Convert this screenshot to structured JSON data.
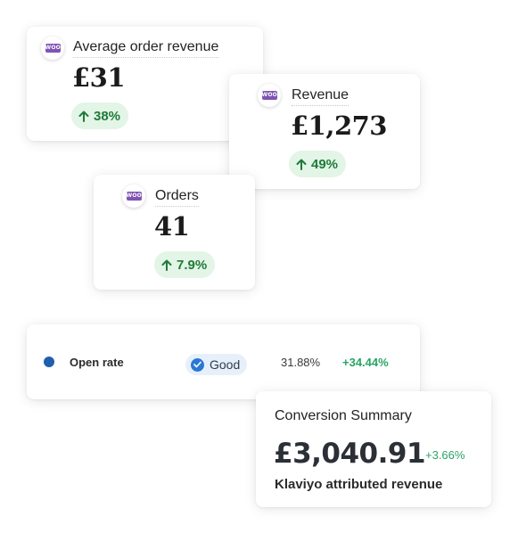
{
  "metrics": [
    {
      "label": "Average order revenue",
      "value": "£31",
      "change": "38%",
      "direction": "up",
      "source_logo": "WOO"
    },
    {
      "label": "Revenue",
      "value": "£1,273",
      "change": "49%",
      "direction": "up",
      "source_logo": "WOO"
    },
    {
      "label": "Orders",
      "value": "41",
      "change": "7.9%",
      "direction": "up",
      "source_logo": "WOO"
    }
  ],
  "open_rate_row": {
    "label": "Open rate",
    "status": "Good",
    "rate": "31.88%",
    "change": "+34.44%",
    "dot_color": "#1f5fae"
  },
  "conversion_summary": {
    "title": "Conversion Summary",
    "value": "£3,040.91",
    "change": "+3.66%",
    "caption": "Klaviyo attributed revenue"
  },
  "colors": {
    "woo_purple": "#7f54b3",
    "positive_green": "#1f7a3a",
    "positive_bg": "#e3f5e6",
    "good_blue": "#2a78d4"
  },
  "icons": {
    "woo": "woocommerce-logo-icon",
    "up": "arrow-up-icon",
    "check": "check-circle-icon"
  }
}
